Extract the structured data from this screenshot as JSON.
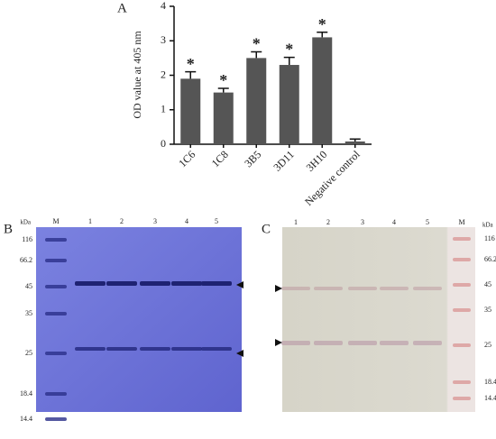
{
  "chart_data": {
    "type": "bar",
    "panel": "A",
    "ylabel": "OD value at 405 nm",
    "categories": [
      "1C6",
      "1C8",
      "3B5",
      "3D11",
      "3H10",
      "Negative control"
    ],
    "values": [
      1.9,
      1.5,
      2.5,
      2.3,
      3.1,
      0.08
    ],
    "errors": [
      0.2,
      0.12,
      0.18,
      0.22,
      0.15,
      0.07
    ],
    "annotations": [
      "*",
      "*",
      "*",
      "*",
      "*",
      null
    ],
    "color": "#555555",
    "ylim": [
      0,
      4
    ],
    "yticks": [
      0,
      1,
      2,
      3,
      4
    ]
  },
  "gel_b": {
    "panel": "B",
    "unit": "kDa",
    "lanes": [
      "M",
      "1",
      "2",
      "3",
      "4",
      "5"
    ],
    "marker_labels": [
      "116",
      "66.2",
      "45",
      "35",
      "25",
      "18.4",
      "14.4"
    ]
  },
  "gel_c": {
    "panel": "C",
    "unit": "kDa",
    "lanes": [
      "1",
      "2",
      "3",
      "4",
      "5",
      "M"
    ],
    "marker_labels": [
      "116",
      "66.2",
      "45",
      "35",
      "25",
      "18.4",
      "14.4"
    ]
  }
}
